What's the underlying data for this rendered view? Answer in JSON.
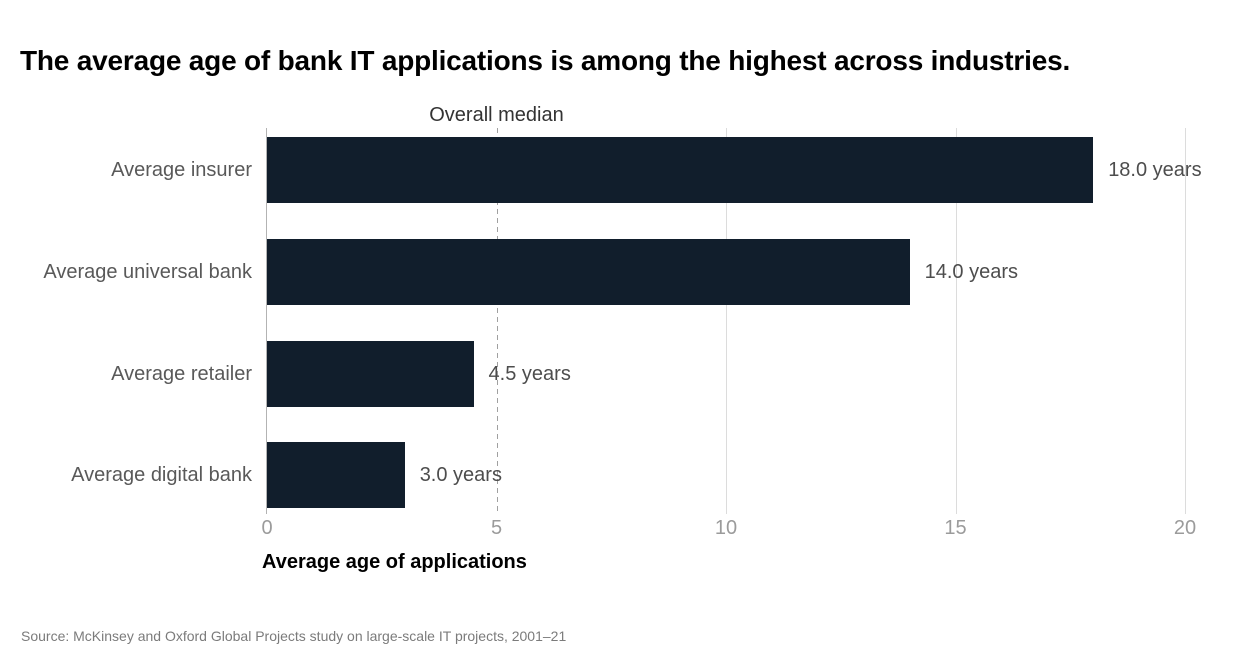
{
  "title": "The average age of bank IT applications is among the highest across industries.",
  "source": "Source: McKinsey and Oxford Global Projects study on large-scale IT projects, 2001–21",
  "chart_data": {
    "type": "bar",
    "orientation": "horizontal",
    "title": "The average age of bank IT applications is among the highest across industries.",
    "categories": [
      "Average insurer",
      "Average universal bank",
      "Average retailer",
      "Average digital bank"
    ],
    "values": [
      18.0,
      14.0,
      4.5,
      3.0
    ],
    "value_labels": [
      "18.0 years",
      "14.0 years",
      "4.5 years",
      "3.0 years"
    ],
    "xlabel": "Average age of applications",
    "ylabel": "",
    "xticks": [
      0,
      5,
      10,
      15,
      20
    ],
    "xtick_labels": [
      "0",
      "5",
      "10",
      "15",
      "20"
    ],
    "xlim": [
      0,
      20
    ],
    "grid": true,
    "legend": false,
    "median_line": {
      "label": "Overall median",
      "value": 5
    },
    "colors": {
      "bar": "#111e2c",
      "gridline": "#dcdcdc",
      "axis_line": "#b3b3b3",
      "median_dash": "#a0a0a0",
      "category_text": "#595959",
      "value_text": "#4d4d4d",
      "tick_text": "#9b9b9b",
      "median_text": "#333333",
      "source_text": "#7b7b7b",
      "title_text": "#000000"
    }
  }
}
